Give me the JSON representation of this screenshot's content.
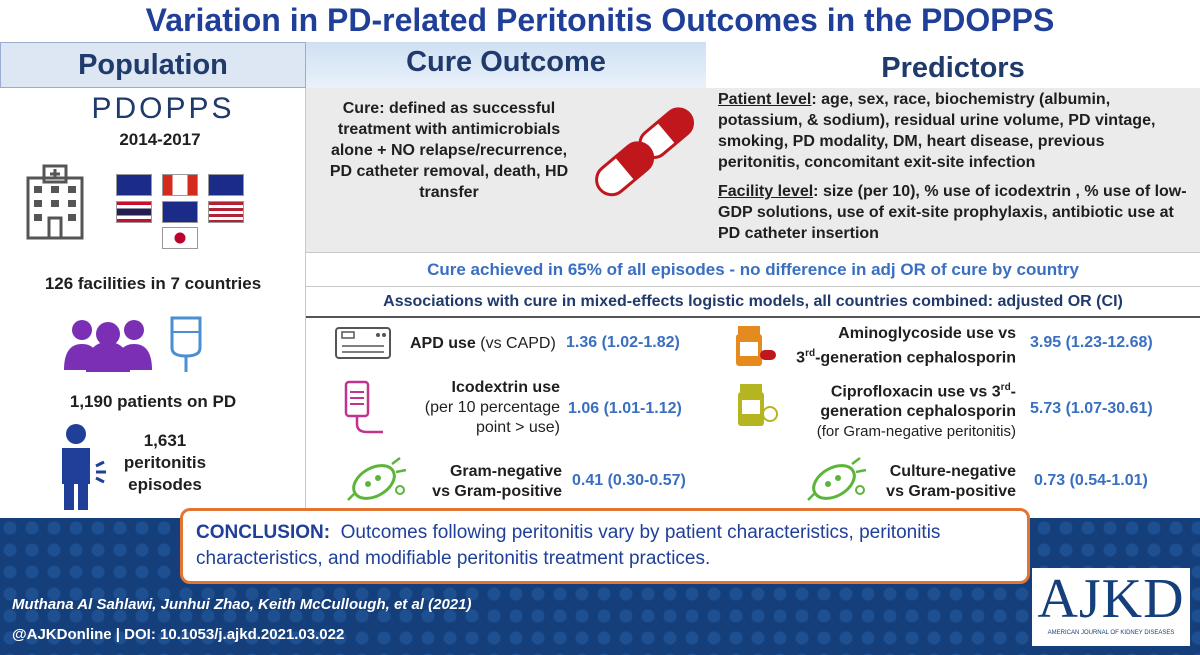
{
  "title": "Variation in PD-related Peritonitis Outcomes in the PDOPPS",
  "headers": {
    "population": "Population",
    "cure": "Cure Outcome",
    "predictors": "Predictors"
  },
  "population": {
    "logo": "PDOPPS",
    "years": "2014-2017",
    "facilities": "126 facilities in 7 countries",
    "patients": "1,190 patients on PD",
    "episodes_line1": "1,631",
    "episodes_line2": "peritonitis",
    "episodes_line3": "episodes"
  },
  "cure_definition": "Cure: defined as successful treatment with antimicrobials alone + NO relapse/recurrence, PD catheter removal, death, HD transfer",
  "predictors": {
    "patient_label": "Patient level",
    "patient_text": ": age, sex, race, biochemistry (albumin, potassium, & sodium), residual urine volume, PD vintage, smoking, PD modality, DM, heart disease, previous peritonitis, concomitant exit-site infection",
    "facility_label": "Facility level",
    "facility_text": ": size (per 10), % use of icodextrin , % use of low-GDP solutions, use of exit-site prophylaxis, antibiotic use at PD catheter insertion"
  },
  "cure_achieved": "Cure achieved in 65% of all episodes - no difference in adj OR of cure by country",
  "associations_header": "Associations with cure in mixed-effects logistic models, all countries combined: adjusted OR (CI)",
  "associations": {
    "apd_label": "APD use",
    "apd_suffix": " (vs CAPD)",
    "apd_value": "1.36 (1.02-1.82)",
    "icodextrin_label_1": "Icodextrin use",
    "icodextrin_label_2": "(per 10 percentage",
    "icodextrin_label_3": "point > use)",
    "icodextrin_value": "1.06 (1.01-1.12)",
    "gramneg_label_1": "Gram-negative",
    "gramneg_label_2": "vs Gram-positive",
    "gramneg_value": "0.41 (0.30-0.57)",
    "amino_label_1": "Aminoglycoside use vs",
    "amino_label_2_sup": "rd",
    "amino_label_2_pre": "3",
    "amino_label_2_post": "-generation cephalosporin",
    "amino_value": "3.95 (1.23-12.68)",
    "cipro_label_1": "Ciprofloxacin use vs 3",
    "cipro_label_1_sup": "rd",
    "cipro_label_1_post": "-",
    "cipro_label_2": "generation cephalosporin",
    "cipro_label_3": "(for Gram-negative peritonitis)",
    "cipro_value": "5.73 (1.07-30.61)",
    "culture_label_1": "Culture-negative",
    "culture_label_2": "vs Gram-positive",
    "culture_value": "0.73 (0.54-1.01)"
  },
  "conclusion_label": "CONCLUSION:",
  "conclusion_text": "Outcomes following peritonitis vary by patient characteristics, peritonitis characteristics, and modifiable peritonitis treatment practices.",
  "authors": "Muthana Al Sahlawi, Junhui Zhao, Keith McCullough, et al  (2021)",
  "doi": "@AJKDonline | DOI: 10.1053/j.ajkd.2021.03.022",
  "ajkd": {
    "logo": "AJKD",
    "subtitle": "AMERICAN JOURNAL OF KIDNEY DISEASES"
  },
  "colors": {
    "title": "#1f3f99",
    "accent": "#3a6fc0",
    "footer": "#153f7a",
    "border": "#e27434",
    "icon_purple": "#7a2fb5",
    "icon_red": "#c0171d",
    "icon_green": "#5cb53a"
  }
}
